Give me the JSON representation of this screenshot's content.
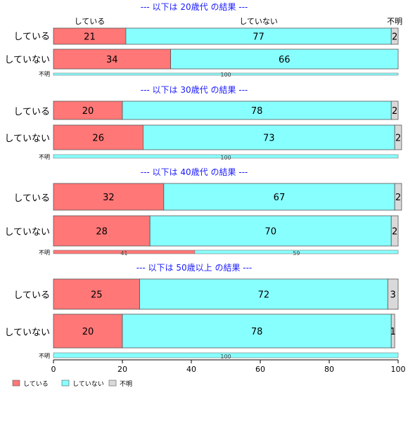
{
  "chart_data": {
    "type": "bar",
    "orientation": "horizontal",
    "stacked": "percent",
    "xlim": [
      0,
      100
    ],
    "xticks": [
      0,
      20,
      40,
      60,
      80,
      100
    ],
    "legend": {
      "position": "bottom-left",
      "entries": [
        "している",
        "していない",
        "不明"
      ]
    },
    "series_colors": [
      "#ff7777",
      "#88ffff",
      "#d9d9d9"
    ],
    "top_category_labels": [
      "している",
      "していない",
      "不明"
    ],
    "groups": [
      {
        "title": "--- 以下は 20歳代 の結果 ---",
        "rows": [
          {
            "label": "している",
            "values": [
              21,
              77,
              2
            ]
          },
          {
            "label": "していない",
            "values": [
              34,
              66,
              0
            ]
          }
        ],
        "unknown_row": {
          "label": "不明",
          "values": [
            0,
            100,
            0
          ]
        }
      },
      {
        "title": "--- 以下は 30歳代 の結果 ---",
        "rows": [
          {
            "label": "している",
            "values": [
              20,
              78,
              2
            ]
          },
          {
            "label": "していない",
            "values": [
              26,
              73,
              2
            ]
          }
        ],
        "unknown_row": {
          "label": "不明",
          "values": [
            0,
            100,
            0
          ]
        }
      },
      {
        "title": "--- 以下は 40歳代 の結果 ---",
        "rows": [
          {
            "label": "している",
            "values": [
              32,
              67,
              2
            ]
          },
          {
            "label": "していない",
            "values": [
              28,
              70,
              2
            ]
          }
        ],
        "unknown_row": {
          "label": "不明",
          "values": [
            41,
            59,
            0
          ]
        }
      },
      {
        "title": "--- 以下は 50歳以上 の結果 ---",
        "rows": [
          {
            "label": "している",
            "values": [
              25,
              72,
              3
            ]
          },
          {
            "label": "していない",
            "values": [
              20,
              78,
              1
            ]
          }
        ],
        "unknown_row": {
          "label": "不明",
          "values": [
            0,
            100,
            0
          ]
        }
      }
    ]
  }
}
